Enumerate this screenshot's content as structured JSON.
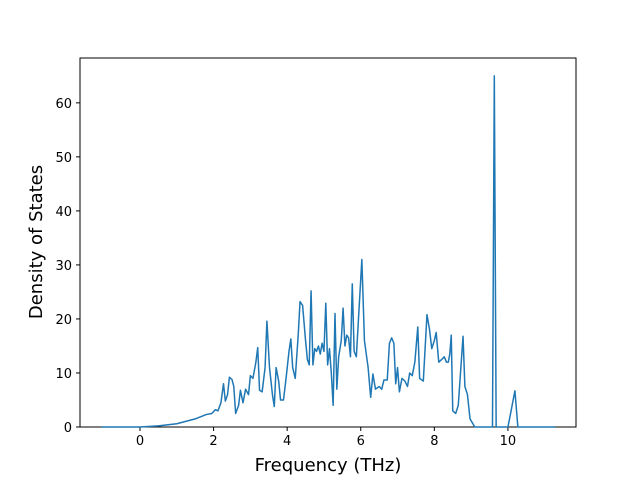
{
  "chart_data": {
    "type": "line",
    "xlabel": "Frequency (THz)",
    "ylabel": "Density of States",
    "color": "#1f77b4",
    "grid": false,
    "xlim": [
      -1.63,
      11.85
    ],
    "ylim": [
      0,
      68.3
    ],
    "xticks": [
      0,
      2,
      4,
      6,
      8,
      10
    ],
    "yticks": [
      0,
      10,
      20,
      30,
      40,
      50,
      60
    ],
    "x": [
      -1.05,
      0,
      0.5,
      1.0,
      1.5,
      1.8,
      1.95,
      2.05,
      2.12,
      2.2,
      2.27,
      2.32,
      2.38,
      2.43,
      2.5,
      2.55,
      2.6,
      2.68,
      2.73,
      2.8,
      2.87,
      2.95,
      3.0,
      3.07,
      3.15,
      3.2,
      3.25,
      3.32,
      3.4,
      3.45,
      3.52,
      3.6,
      3.65,
      3.7,
      3.77,
      3.82,
      3.9,
      3.97,
      4.05,
      4.1,
      4.15,
      4.22,
      4.3,
      4.35,
      4.42,
      4.5,
      4.55,
      4.6,
      4.65,
      4.7,
      4.75,
      4.8,
      4.85,
      4.9,
      4.95,
      5.0,
      5.05,
      5.1,
      5.15,
      5.2,
      5.25,
      5.3,
      5.35,
      5.4,
      5.47,
      5.52,
      5.57,
      5.62,
      5.67,
      5.72,
      5.77,
      5.82,
      5.88,
      6.03,
      6.1,
      6.2,
      6.27,
      6.33,
      6.4,
      6.5,
      6.57,
      6.63,
      6.72,
      6.78,
      6.84,
      6.9,
      6.95,
      7.0,
      7.05,
      7.12,
      7.2,
      7.27,
      7.33,
      7.4,
      7.47,
      7.55,
      7.6,
      7.7,
      7.8,
      7.87,
      7.93,
      8.0,
      8.05,
      8.12,
      8.2,
      8.27,
      8.33,
      8.38,
      8.42,
      8.46,
      8.5,
      8.58,
      8.65,
      8.78,
      8.83,
      8.9,
      8.97,
      9.1,
      9.58,
      9.63,
      9.68,
      10.0,
      10.1,
      10.19,
      10.27,
      11.28
    ],
    "values": [
      0,
      0,
      0.2,
      0.6,
      1.5,
      2.3,
      2.5,
      3.2,
      3.0,
      4.5,
      8.0,
      4.8,
      6.0,
      9.2,
      8.8,
      7.5,
      2.5,
      4.0,
      6.8,
      4.5,
      7.0,
      6.0,
      9.5,
      9.0,
      12.0,
      14.7,
      6.8,
      6.5,
      11.0,
      19.6,
      11.0,
      6.0,
      3.8,
      11.0,
      8.5,
      5.0,
      5.0,
      9.0,
      14.0,
      16.3,
      11.0,
      9.0,
      17.0,
      23.2,
      22.5,
      16.0,
      12.5,
      11.5,
      25.2,
      11.5,
      14.5,
      14.0,
      15.0,
      13.5,
      15.5,
      14.0,
      22.9,
      11.5,
      14.5,
      10.0,
      4.0,
      21.0,
      7.0,
      13.0,
      16.0,
      22.0,
      15.0,
      17.0,
      16.5,
      13.0,
      26.5,
      14.0,
      13.0,
      31.0,
      16.0,
      11.0,
      5.5,
      9.8,
      7.0,
      7.5,
      7.0,
      8.7,
      8.7,
      15.5,
      16.5,
      15.5,
      8.0,
      11.0,
      6.5,
      9.0,
      8.5,
      7.5,
      10.0,
      9.5,
      12.0,
      18.5,
      9.0,
      8.5,
      20.8,
      18.0,
      14.5,
      16.0,
      17.5,
      12.0,
      12.5,
      13.0,
      12.0,
      12.0,
      13.5,
      17.0,
      3.0,
      2.5,
      4.0,
      16.8,
      7.5,
      6.0,
      1.5,
      0,
      0,
      65.0,
      0,
      0,
      3.5,
      6.7,
      0,
      0
    ]
  }
}
